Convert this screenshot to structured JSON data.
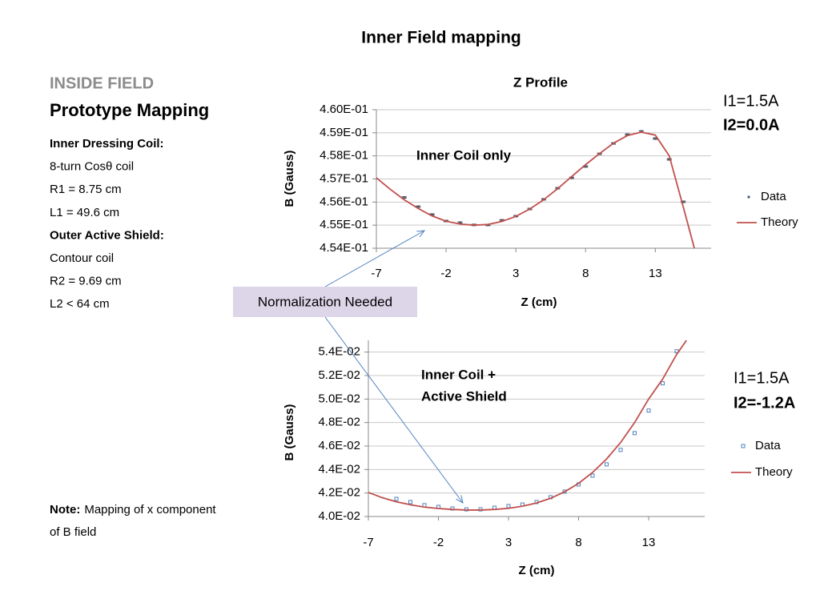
{
  "slide": {
    "title": "Inner Field mapping",
    "heading": "INSIDE FIELD",
    "subheading": "Prototype Mapping",
    "details": [
      "Inner Dressing Coil:",
      "8-turn Cosθ coil",
      "R1 = 8.75 cm",
      "L1 = 49.6 cm",
      "Outer Active Shield:",
      "Contour coil",
      "R2 = 9.69 cm",
      "L2 < 64 cm"
    ],
    "note_label": "Note:",
    "note_lines": [
      "Mapping of x component",
      "of B field"
    ],
    "callout": "Normalization Needed"
  },
  "chart_data": [
    {
      "type": "scatter",
      "title": "Z Profile",
      "x_label": "Z (cm)",
      "y_label": "B (Gauss)",
      "annotations": [
        [
          "Inner Coil only"
        ]
      ],
      "currents": [
        "I1=1.5A",
        "I2=0.0A"
      ],
      "xlim": [
        -7,
        17
      ],
      "xticks": [
        -7,
        -2,
        3,
        8,
        13
      ],
      "ylim": [
        0.454,
        0.46
      ],
      "yticks": [
        {
          "value": 0.454,
          "label": "4.54E-01"
        },
        {
          "value": 0.455,
          "label": "4.55E-01"
        },
        {
          "value": 0.456,
          "label": "4.56E-01"
        },
        {
          "value": 0.457,
          "label": "4.57E-01"
        },
        {
          "value": 0.458,
          "label": "4.58E-01"
        },
        {
          "value": 0.459,
          "label": "4.59E-01"
        },
        {
          "value": 0.46,
          "label": "4.60E-01"
        }
      ],
      "grid": true,
      "series": [
        {
          "name": "Data",
          "color": "#4a5a7a",
          "marker": "dot",
          "x": [
            -5,
            -4,
            -3,
            -2,
            -1,
            0,
            1,
            2,
            3,
            4,
            5,
            6,
            7,
            8,
            9,
            10,
            11,
            12,
            13,
            14,
            15
          ],
          "values": [
            0.4562,
            0.4558,
            0.45546,
            0.45518,
            0.45511,
            0.45501,
            0.45501,
            0.45521,
            0.45539,
            0.4557,
            0.45612,
            0.4566,
            0.45705,
            0.45754,
            0.45809,
            0.45854,
            0.45892,
            0.45906,
            0.45875,
            0.45785,
            0.45601
          ],
          "errors": [
            3e-05,
            3e-05,
            3e-05,
            3e-05,
            3e-05,
            3e-05,
            3e-05,
            3e-05,
            3e-05,
            3e-05,
            3e-05,
            3e-05,
            3e-05,
            3e-05,
            3e-05,
            3e-05,
            3e-05,
            3e-05,
            3e-05,
            3e-05,
            3e-05
          ]
        },
        {
          "name": "Theory",
          "color": "#c0504d",
          "marker": "line",
          "x": [
            -7,
            -6,
            -5,
            -4,
            -3,
            -2,
            -1,
            0,
            1,
            2,
            3,
            4,
            5,
            6,
            7,
            8,
            9,
            10,
            11,
            12,
            13,
            14,
            15,
            15.8
          ],
          "values": [
            0.45705,
            0.45655,
            0.4561,
            0.45572,
            0.4554,
            0.45517,
            0.45505,
            0.455,
            0.45503,
            0.45516,
            0.45538,
            0.4557,
            0.4561,
            0.45658,
            0.4571,
            0.45762,
            0.4581,
            0.45855,
            0.45888,
            0.45903,
            0.4589,
            0.458,
            0.4558,
            0.454
          ]
        }
      ]
    },
    {
      "type": "scatter",
      "x_label": "Z (cm)",
      "y_label": "B (Gauss)",
      "annotations": [
        [
          "Inner Coil +",
          "Active Shield"
        ]
      ],
      "currents": [
        "I1=1.5A",
        "I2=-1.2A"
      ],
      "xlim": [
        -7,
        17
      ],
      "xticks": [
        -7,
        -2,
        3,
        8,
        13
      ],
      "ylim": [
        0.04,
        0.055
      ],
      "yticks": [
        {
          "value": 0.04,
          "label": "4.0E-02"
        },
        {
          "value": 0.042,
          "label": "4.2E-02"
        },
        {
          "value": 0.044,
          "label": "4.4E-02"
        },
        {
          "value": 0.046,
          "label": "4.6E-02"
        },
        {
          "value": 0.048,
          "label": "4.8E-02"
        },
        {
          "value": 0.05,
          "label": "5.0E-02"
        },
        {
          "value": 0.052,
          "label": "5.2E-02"
        },
        {
          "value": 0.054,
          "label": "5.4E-02"
        }
      ],
      "grid": true,
      "series": [
        {
          "name": "Data",
          "color": "#4f81bd",
          "marker": "square",
          "x": [
            -5,
            -4,
            -3,
            -2,
            -1,
            0,
            1,
            2,
            3,
            4,
            5,
            6,
            7,
            8,
            9,
            10,
            11,
            12,
            13,
            14,
            15
          ],
          "values": [
            0.0415,
            0.04123,
            0.04096,
            0.04082,
            0.04068,
            0.04061,
            0.04061,
            0.04075,
            0.04089,
            0.04102,
            0.04123,
            0.04164,
            0.04212,
            0.04273,
            0.04348,
            0.04444,
            0.04567,
            0.0471,
            0.04902,
            0.05134,
            0.05407
          ]
        },
        {
          "name": "Theory",
          "color": "#c0504d",
          "marker": "line",
          "x": [
            -7,
            -6,
            -5,
            -4,
            -3,
            -2,
            -1,
            0,
            1,
            2,
            3,
            4,
            5,
            6,
            7,
            8,
            9,
            10,
            11,
            12,
            13,
            14,
            15,
            15.7
          ],
          "values": [
            0.04205,
            0.0416,
            0.04125,
            0.041,
            0.0408,
            0.04068,
            0.0406,
            0.04055,
            0.04055,
            0.0406,
            0.0407,
            0.04088,
            0.04115,
            0.04155,
            0.0421,
            0.04282,
            0.04375,
            0.0449,
            0.0463,
            0.048,
            0.05,
            0.0517,
            0.0538,
            0.055
          ]
        }
      ]
    }
  ]
}
